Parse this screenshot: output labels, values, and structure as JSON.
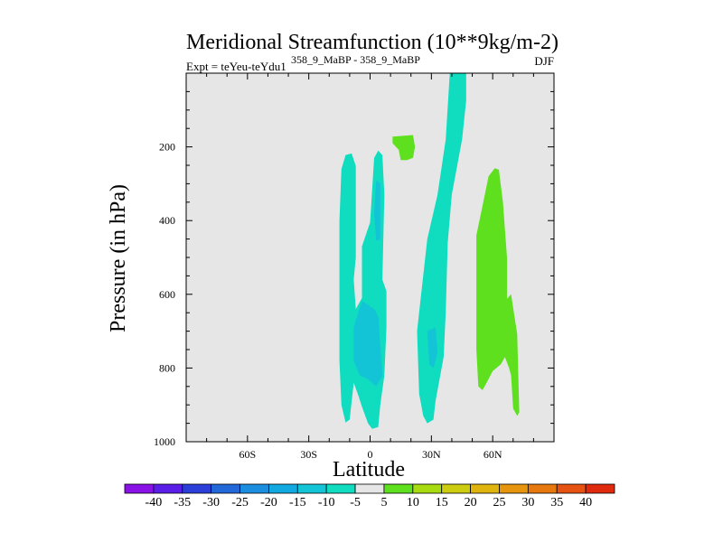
{
  "chart_data": {
    "type": "contour",
    "title": "Meridional Streamfunction (10**9kg/m-2)",
    "subtitle_left": "Expt = teYeu-teYdu1",
    "subtitle_left_super": "358_9_MaBP - 358_9_MaBP",
    "subtitle_right": "DJF",
    "xlabel": "Latitude",
    "ylabel": "Pressure (in hPa)",
    "xlim": [
      -90,
      90
    ],
    "ylim": [
      0,
      1000
    ],
    "y_inverted": true,
    "x_ticks": [
      {
        "value": -60,
        "label": "60S"
      },
      {
        "value": -30,
        "label": "30S"
      },
      {
        "value": 0,
        "label": "0"
      },
      {
        "value": 30,
        "label": "30N"
      },
      {
        "value": 60,
        "label": "60N"
      }
    ],
    "y_ticks": [
      {
        "value": 200,
        "label": "200"
      },
      {
        "value": 400,
        "label": "400"
      },
      {
        "value": 600,
        "label": "600"
      },
      {
        "value": 800,
        "label": "800"
      },
      {
        "value": 1000,
        "label": "1000"
      }
    ],
    "colorbar": {
      "labels": [
        "-40",
        "-35",
        "-30",
        "-25",
        "-20",
        "-15",
        "-10",
        "-5",
        "5",
        "10",
        "15",
        "20",
        "25",
        "30",
        "35",
        "40"
      ],
      "colors": [
        "#8a12e6",
        "#5a1ee8",
        "#2b3fd8",
        "#2368d8",
        "#1b8ee0",
        "#12a8e0",
        "#12c4d6",
        "#10dcc0",
        "#e6e6e6",
        "#5ee01e",
        "#a8dc10",
        "#cccc10",
        "#e0b40e",
        "#e6960e",
        "#e6780e",
        "#e65212",
        "#e02a0e"
      ]
    },
    "regions": [
      {
        "level": "-10 to -5",
        "color": "#10dcc0",
        "polygon": [
          [
            -12,
            222
          ],
          [
            -9,
            218
          ],
          [
            -7,
            252
          ],
          [
            -7,
            500
          ],
          [
            -8,
            560
          ],
          [
            -7,
            640
          ],
          [
            -4,
            610
          ],
          [
            -4,
            470
          ],
          [
            0,
            405
          ],
          [
            2,
            230
          ],
          [
            4,
            210
          ],
          [
            6,
            222
          ],
          [
            7,
            330
          ],
          [
            6,
            560
          ],
          [
            8,
            592
          ],
          [
            8,
            690
          ],
          [
            7,
            820
          ],
          [
            5,
            900
          ],
          [
            4,
            960
          ],
          [
            1,
            965
          ],
          [
            -1,
            950
          ],
          [
            -4,
            905
          ],
          [
            -6,
            870
          ],
          [
            -8,
            840
          ],
          [
            -10,
            940
          ],
          [
            -12,
            948
          ],
          [
            -14,
            900
          ],
          [
            -15,
            780
          ],
          [
            -15,
            400
          ],
          [
            -14,
            260
          ]
        ]
      },
      {
        "level": "-15 to -10",
        "color": "#12c4d6",
        "polygon": [
          [
            -8,
            690
          ],
          [
            -4,
            618
          ],
          [
            2,
            640
          ],
          [
            4,
            660
          ],
          [
            6,
            820
          ],
          [
            3,
            850
          ],
          [
            -1,
            830
          ],
          [
            -5,
            820
          ],
          [
            -8,
            780
          ]
        ]
      },
      {
        "level": "-15 to -10",
        "color": "#12c4d6",
        "polygon": [
          [
            3,
            290
          ],
          [
            5,
            300
          ],
          [
            5,
            450
          ],
          [
            3,
            455
          ],
          [
            2,
            380
          ]
        ]
      },
      {
        "level": "-10 to -5",
        "color": "#10dcc0",
        "polygon": [
          [
            39,
            0
          ],
          [
            47,
            0
          ],
          [
            47,
            75
          ],
          [
            45,
            180
          ],
          [
            40,
            330
          ],
          [
            38,
            460
          ],
          [
            37,
            650
          ],
          [
            36,
            770
          ],
          [
            34,
            830
          ],
          [
            32,
            890
          ],
          [
            31,
            940
          ],
          [
            28,
            950
          ],
          [
            26,
            930
          ],
          [
            24,
            870
          ],
          [
            23,
            700
          ],
          [
            25,
            600
          ],
          [
            28,
            450
          ],
          [
            33,
            330
          ],
          [
            37,
            180
          ]
        ]
      },
      {
        "level": "-15 to -10",
        "color": "#12c4d6",
        "polygon": [
          [
            28,
            700
          ],
          [
            32,
            690
          ],
          [
            33,
            760
          ],
          [
            31,
            800
          ],
          [
            29,
            790
          ]
        ]
      },
      {
        "level": "5 to 10",
        "color": "#5ee01e",
        "polygon": [
          [
            11,
            172
          ],
          [
            21,
            168
          ],
          [
            22,
            200
          ],
          [
            21,
            230
          ],
          [
            18,
            236
          ],
          [
            15,
            236
          ],
          [
            14,
            208
          ],
          [
            11,
            190
          ]
        ]
      },
      {
        "level": "5 to 10",
        "color": "#5ee01e",
        "polygon": [
          [
            61,
            258
          ],
          [
            63,
            262
          ],
          [
            65,
            350
          ],
          [
            67,
            500
          ],
          [
            67,
            612
          ],
          [
            69,
            600
          ],
          [
            72,
            708
          ],
          [
            73,
            920
          ],
          [
            72,
            930
          ],
          [
            70,
            910
          ],
          [
            69,
            820
          ],
          [
            68,
            800
          ],
          [
            66,
            770
          ],
          [
            64,
            790
          ],
          [
            60,
            808
          ],
          [
            57,
            840
          ],
          [
            55,
            860
          ],
          [
            53,
            850
          ],
          [
            52,
            750
          ],
          [
            52,
            440
          ],
          [
            55,
            360
          ],
          [
            58,
            280
          ]
        ]
      }
    ]
  }
}
